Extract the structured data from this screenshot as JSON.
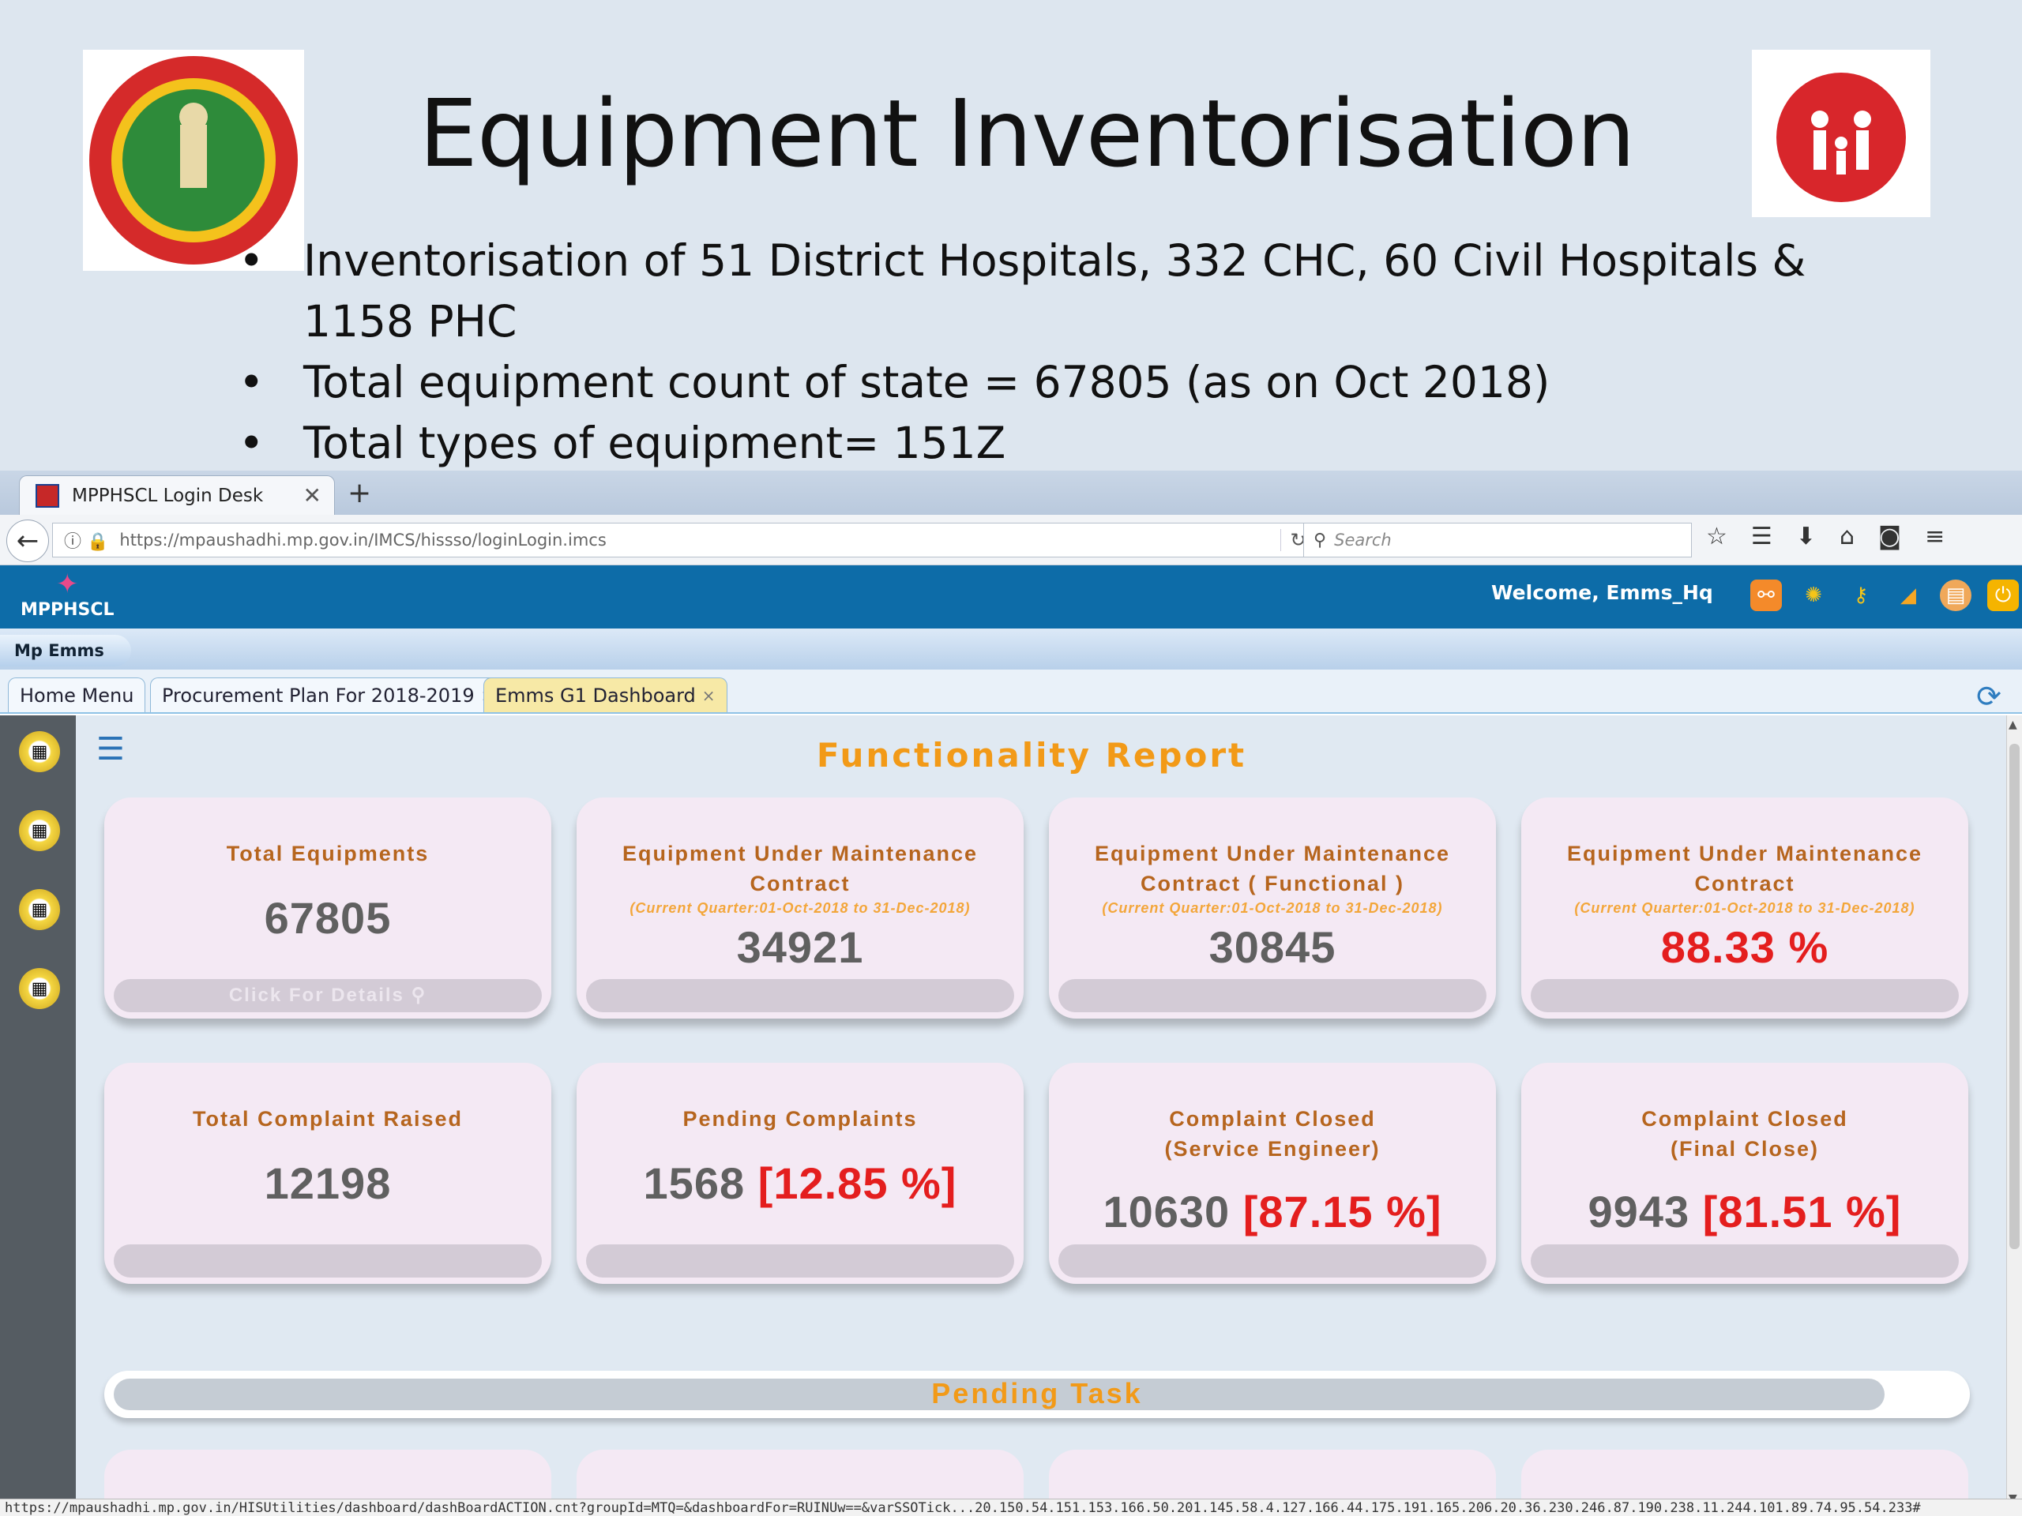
{
  "slide": {
    "title": "Equipment Inventorisation",
    "bullets": [
      "Inventorisation of 51 District Hospitals, 332 CHC, 60 Civil Hospitals & 1158 PHC",
      "Total equipment count of state = 67805 (as on Oct 2018)",
      "Total types of equipment= 151Z"
    ]
  },
  "browser": {
    "tab_title": "MPPHSCL Login Desk",
    "url": "https://mpaushadhi.mp.gov.in/IMCS/hissso/loginLogin.imcs",
    "search_placeholder": "Search",
    "status_url": "https://mpaushadhi.mp.gov.in/HISUtilities/dashboard/dashBoardACTION.cnt?groupId=MTQ=&dashboardFor=RUINUw==&varSSOTick...20.150.54.151.153.166.50.201.145.58.4.127.166.44.175.191.165.206.20.36.230.246.87.190.238.11.244.101.89.74.95.54.233#"
  },
  "app": {
    "logo_text": "MPPHSCL",
    "welcome": "Welcome, Emms_Hq",
    "module": "Mp Emms",
    "tabs": [
      {
        "label": "Home Menu"
      },
      {
        "label": "Procurement Plan For 2018-2019"
      },
      {
        "label": "Emms G1 Dashboard"
      }
    ]
  },
  "report": {
    "title": "Functionality Report",
    "cards_row1": [
      {
        "title": "Total Equipments",
        "sub": "",
        "value": "67805",
        "pct": "",
        "footer": "Click For Details"
      },
      {
        "title": "Equipment Under Maintenance Contract",
        "sub": "(Current Quarter:01-Oct-2018 to 31-Dec-2018)",
        "value": "34921",
        "pct": "",
        "footer": ""
      },
      {
        "title": "Equipment Under Maintenance Contract ( Functional )",
        "sub": "(Current Quarter:01-Oct-2018 to 31-Dec-2018)",
        "value": "30845",
        "pct": "",
        "footer": ""
      },
      {
        "title": "Equipment Under Maintenance Contract",
        "sub": "(Current Quarter:01-Oct-2018 to 31-Dec-2018)",
        "value": "",
        "pct": "88.33 %",
        "footer": ""
      }
    ],
    "cards_row2": [
      {
        "title": "Total Complaint Raised",
        "value": "12198",
        "pct": ""
      },
      {
        "title": "Pending Complaints",
        "value": "1568",
        "pct": "[12.85 %]"
      },
      {
        "title": "Complaint Closed (Service Engineer)",
        "value": "10630",
        "pct": "[87.15 %]"
      },
      {
        "title": "Complaint Closed (Final Close)",
        "value": "9943",
        "pct": "[81.51 %]"
      }
    ],
    "pending_title": "Pending Task"
  },
  "colors": {
    "app_header": "#0d6ca8",
    "accent_orange": "#f29a18",
    "card_bg": "#f4e9f4",
    "percent_red": "#e41e1e"
  }
}
